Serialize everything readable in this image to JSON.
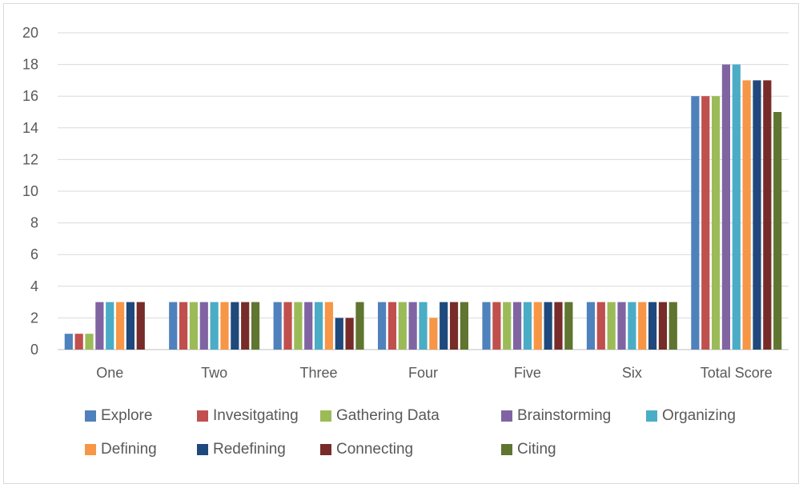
{
  "chart_data": {
    "type": "bar",
    "categories": [
      "One",
      "Two",
      "Three",
      "Four",
      "Five",
      "Six",
      "Total Score"
    ],
    "ylim": [
      0,
      20
    ],
    "yticks": [
      0,
      2,
      4,
      6,
      8,
      10,
      12,
      14,
      16,
      18,
      20
    ],
    "grid": true,
    "legend_position": "bottom",
    "series": [
      {
        "name": "Explore",
        "color": "#4F81BD",
        "values": [
          1,
          3,
          3,
          3,
          3,
          3,
          16
        ]
      },
      {
        "name": "Invesitgating",
        "color": "#C0504D",
        "values": [
          1,
          3,
          3,
          3,
          3,
          3,
          16
        ]
      },
      {
        "name": "Gathering Data",
        "color": "#9BBB59",
        "values": [
          1,
          3,
          3,
          3,
          3,
          3,
          16
        ]
      },
      {
        "name": "Brainstorming",
        "color": "#8064A2",
        "values": [
          3,
          3,
          3,
          3,
          3,
          3,
          18
        ]
      },
      {
        "name": "Organizing",
        "color": "#4BACC6",
        "values": [
          3,
          3,
          3,
          3,
          3,
          3,
          18
        ]
      },
      {
        "name": "Defining",
        "color": "#F79646",
        "values": [
          3,
          3,
          3,
          2,
          3,
          3,
          17
        ]
      },
      {
        "name": "Redefining",
        "color": "#1F497D",
        "values": [
          3,
          3,
          2,
          3,
          3,
          3,
          17
        ]
      },
      {
        "name": "Connecting",
        "color": "#772C2A",
        "values": [
          3,
          3,
          2,
          3,
          3,
          3,
          17
        ]
      },
      {
        "name": "Citing",
        "color": "#5F7530",
        "values": [
          0,
          3,
          3,
          3,
          3,
          3,
          15
        ]
      }
    ]
  }
}
